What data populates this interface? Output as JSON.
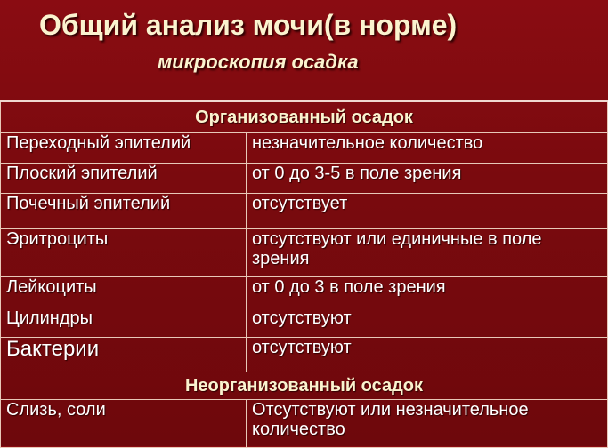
{
  "title": "Общий анализ мочи(в норме)",
  "subtitle": "микроскопия осадка",
  "sections": [
    {
      "heading": "Организованный осадок",
      "rows": [
        {
          "name": "Переходный эпителий",
          "value": "незначительное количество"
        },
        {
          "name": "Плоский эпителий",
          "value": "от 0 до 3-5 в поле зрения"
        },
        {
          "name": "Почечный эпителий",
          "value": "отсутствует"
        },
        {
          "name": "Эритроциты",
          "value": "отсутствуют или единичные в поле зрения"
        },
        {
          "name": "Лейкоциты",
          "value": "от 0 до 3 в поле зрения"
        },
        {
          "name": "Цилиндры",
          "value": "отсутствуют"
        },
        {
          "name": "Бактерии",
          "value": "отсутствуют"
        }
      ]
    },
    {
      "heading": "Неорганизованный осадок",
      "rows": [
        {
          "name": "Слизь, соли",
          "value": "Отсутствуют или незначительное количество"
        }
      ]
    }
  ]
}
